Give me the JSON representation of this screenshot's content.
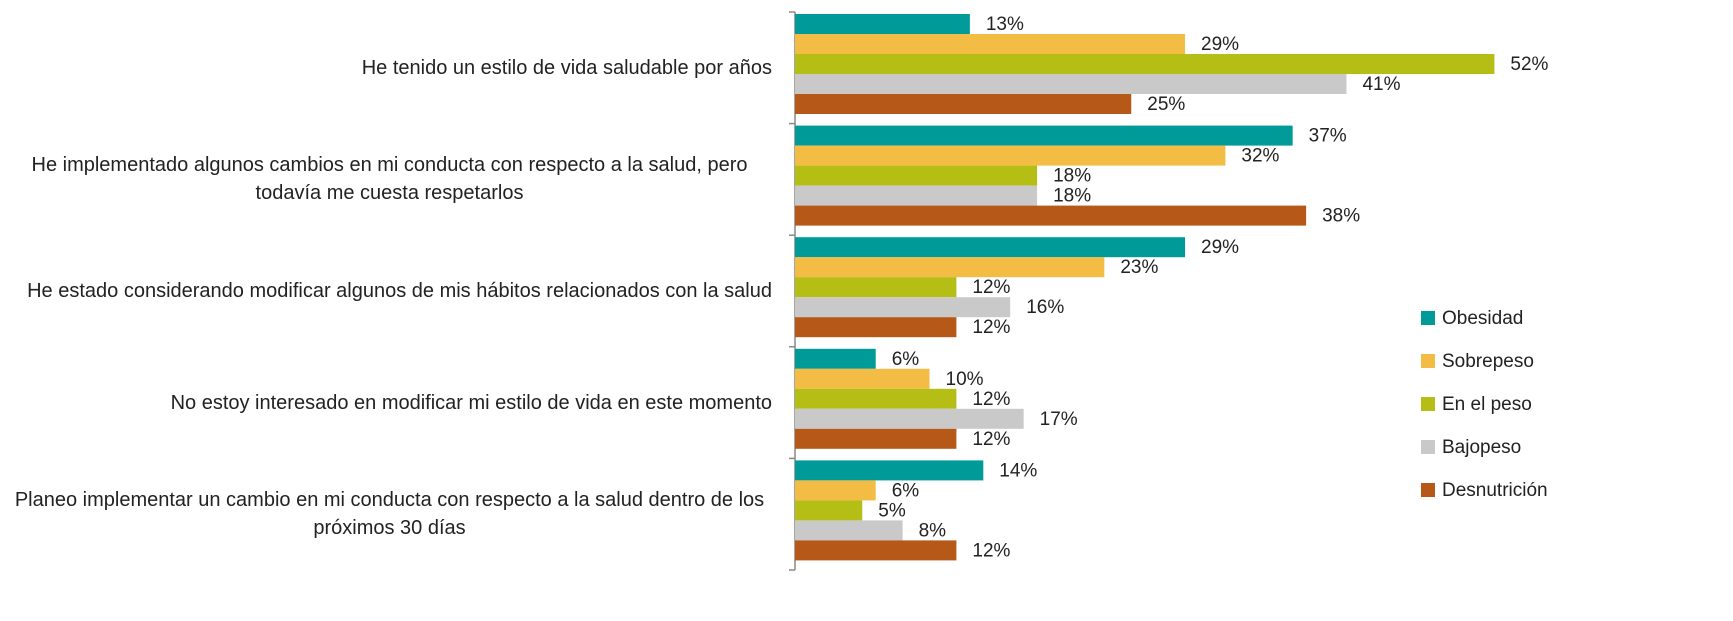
{
  "chart_data": {
    "type": "bar",
    "orientation": "horizontal",
    "categories": [
      "He tenido un estilo de vida saludable por años",
      "He implementado algunos cambios en mi conducta con respecto a la salud, pero todavía me cuesta respetarlos",
      "He estado considerando modificar algunos de mis hábitos relacionados con la salud",
      "No estoy interesado en modificar mi estilo de vida en este momento",
      "Planeo implementar un cambio en mi conducta con respecto a la salud dentro de los próximos 30 días"
    ],
    "series": [
      {
        "name": "Obesidad",
        "color": "#009b98",
        "values": [
          13,
          37,
          29,
          6,
          14
        ],
        "value_labels": [
          "13%",
          "37%",
          "29%",
          "6%",
          "14%"
        ]
      },
      {
        "name": "Sobrepeso",
        "color": "#f3bc45",
        "values": [
          29,
          32,
          23,
          10,
          6
        ],
        "value_labels": [
          "29%",
          "32%",
          "23%",
          "10%",
          "6%"
        ]
      },
      {
        "name": "En el peso",
        "color": "#b5be14",
        "values": [
          52,
          18,
          12,
          12,
          5
        ],
        "value_labels": [
          "52%",
          "18%",
          "12%",
          "12%",
          "5%"
        ]
      },
      {
        "name": "Bajopeso",
        "color": "#c9c9c9",
        "values": [
          41,
          18,
          16,
          17,
          8
        ],
        "value_labels": [
          "41%",
          "18%",
          "16%",
          "17%",
          "8%"
        ]
      },
      {
        "name": "Desnutrición",
        "color": "#b65817",
        "values": [
          25,
          38,
          12,
          12,
          12
        ],
        "value_labels": [
          "25%",
          "38%",
          "12%",
          "12%",
          "12%"
        ]
      }
    ],
    "legend": "right"
  }
}
